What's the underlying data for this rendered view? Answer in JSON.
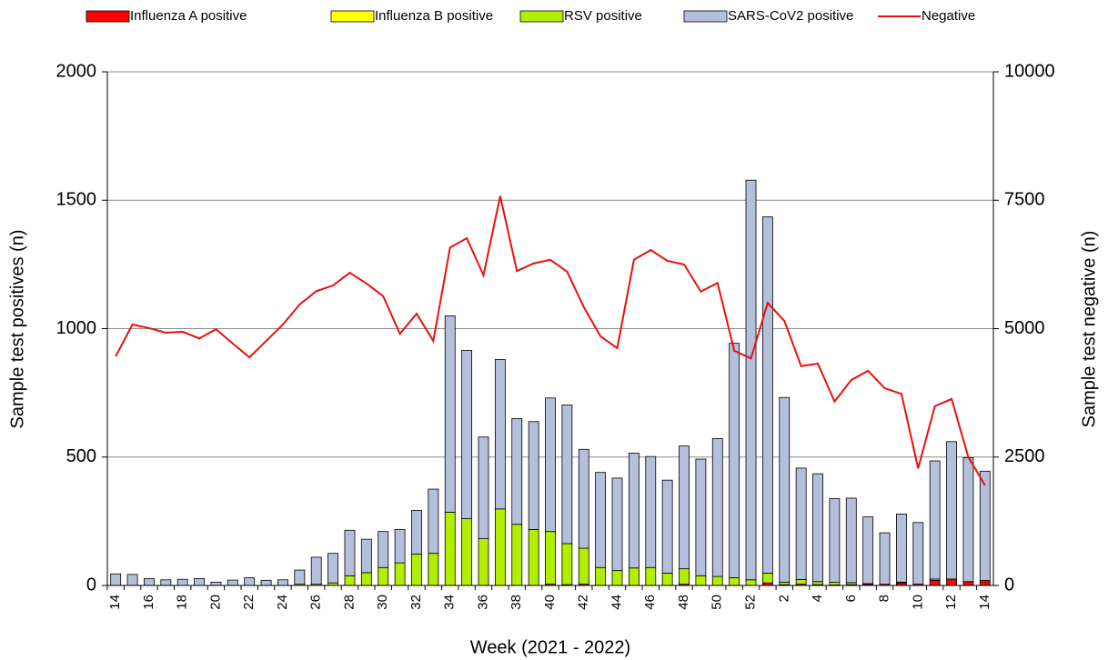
{
  "chart_data": {
    "type": "bar_line",
    "x_label": "Week (2021 - 2022)",
    "y_label": "Sample test positives (n)",
    "y2_label": "Sample test negative (n)",
    "categories": [
      "14",
      null,
      "16",
      null,
      "18",
      null,
      "20",
      null,
      "22",
      null,
      "24",
      null,
      "26",
      null,
      "28",
      null,
      "30",
      null,
      "32",
      null,
      "34",
      null,
      "36",
      null,
      "38",
      null,
      "40",
      null,
      "42",
      null,
      "44",
      null,
      "46",
      null,
      "48",
      null,
      "50",
      null,
      "52",
      null,
      "2",
      null,
      "4",
      null,
      "6",
      null,
      "8",
      null,
      "10",
      null,
      "12",
      null,
      "14"
    ],
    "series": [
      {
        "name": "Influenza A positive",
        "color": "#ff0000",
        "values": [
          0,
          0,
          0,
          0,
          0,
          0,
          0,
          0,
          0,
          0,
          0,
          0,
          0,
          0,
          0,
          0,
          0,
          0,
          0,
          0,
          0,
          0,
          0,
          0,
          0,
          0,
          5,
          3,
          5,
          0,
          0,
          0,
          0,
          0,
          5,
          0,
          0,
          0,
          0,
          10,
          3,
          5,
          3,
          2,
          3,
          5,
          5,
          10,
          5,
          20,
          25,
          15,
          15
        ]
      },
      {
        "name": "Influenza B positive",
        "color": "#ffff00",
        "values": [
          0,
          0,
          0,
          0,
          0,
          0,
          0,
          0,
          0,
          0,
          0,
          0,
          0,
          0,
          0,
          0,
          0,
          0,
          0,
          0,
          0,
          0,
          0,
          0,
          0,
          0,
          0,
          0,
          0,
          0,
          0,
          0,
          0,
          0,
          0,
          0,
          0,
          0,
          0,
          0,
          0,
          0,
          0,
          0,
          0,
          0,
          0,
          3,
          0,
          5,
          0,
          0,
          5
        ]
      },
      {
        "name": "RSV positive",
        "color": "#b2ee00",
        "values": [
          0,
          0,
          0,
          0,
          0,
          0,
          0,
          0,
          0,
          0,
          0,
          5,
          5,
          10,
          38,
          50,
          70,
          88,
          122,
          125,
          285,
          260,
          182,
          298,
          238,
          218,
          205,
          160,
          140,
          70,
          58,
          68,
          70,
          48,
          60,
          38,
          35,
          30,
          22,
          38,
          10,
          18,
          12,
          10,
          8,
          2,
          0,
          0,
          0,
          0,
          0,
          0,
          0
        ]
      },
      {
        "name": "SARS-CoV2 positive",
        "color": "#b4bfdc",
        "values": [
          45,
          43,
          27,
          22,
          24,
          27,
          13,
          21,
          30,
          20,
          22,
          55,
          105,
          115,
          177,
          130,
          140,
          130,
          170,
          250,
          765,
          655,
          396,
          582,
          412,
          420,
          520,
          540,
          385,
          370,
          360,
          447,
          432,
          362,
          478,
          454,
          537,
          913,
          1556,
          1387,
          719,
          434,
          420,
          326,
          329,
          260,
          200,
          265,
          240,
          460,
          535,
          482,
          425
        ]
      },
      {
        "name": "Negative",
        "color": "#e8100c",
        "axis": "y2",
        "values": [
          4460,
          5080,
          5010,
          4920,
          4940,
          4810,
          4990,
          4710,
          4440,
          4760,
          5080,
          5470,
          5730,
          5840,
          6090,
          5880,
          5630,
          4900,
          5290,
          4760,
          6580,
          6760,
          6040,
          7580,
          6120,
          6270,
          6340,
          6110,
          5420,
          4850,
          4620,
          6340,
          6530,
          6320,
          6250,
          5720,
          5890,
          4570,
          4420,
          5500,
          5150,
          4270,
          4320,
          3580,
          4000,
          4180,
          3840,
          3730,
          2280,
          3490,
          3630,
          2500,
          1950
        ]
      }
    ],
    "ylim": [
      0,
      2000
    ],
    "yticks": [
      0,
      500,
      1000,
      1500,
      2000
    ],
    "y2lim": [
      0,
      10000
    ],
    "y2ticks": [
      0,
      2500,
      5000,
      7500,
      10000
    ],
    "grid": true
  }
}
